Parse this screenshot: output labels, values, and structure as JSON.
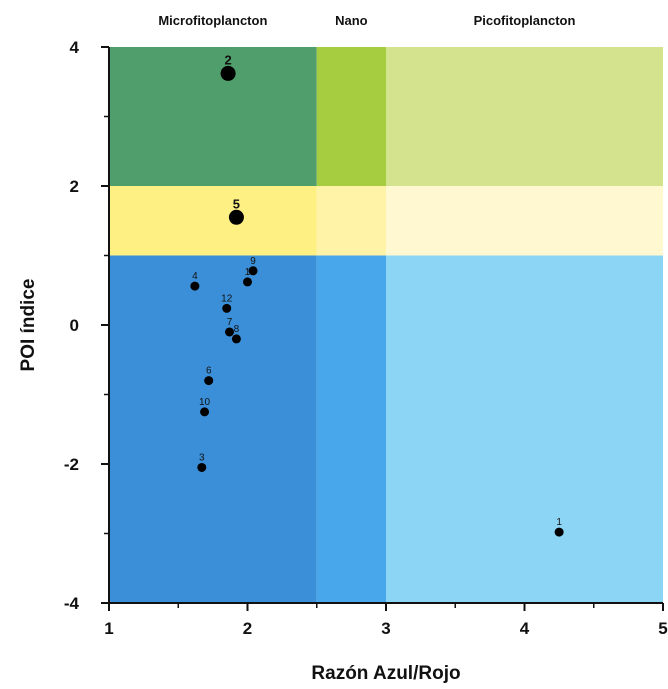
{
  "chart_data": {
    "type": "scatter",
    "xlabel": "Razón Azul/Rojo",
    "ylabel": "POI índice",
    "xlim": [
      1,
      5
    ],
    "ylim": [
      -4,
      4
    ],
    "xticks": [
      "1",
      "2",
      "3",
      "4",
      "5"
    ],
    "yticks": [
      "4",
      "2",
      "0",
      "-2",
      "-4"
    ],
    "region_labels": [
      {
        "text": "Microfitoplancton",
        "x_center": 1.75
      },
      {
        "text": "Nano",
        "x_center": 2.75
      },
      {
        "text": "Picofitoplancton",
        "x_center": 4.0
      }
    ],
    "regions": [
      {
        "x": [
          1,
          2.5
        ],
        "y": [
          2,
          4
        ],
        "color": "#4f9e6b"
      },
      {
        "x": [
          2.5,
          3
        ],
        "y": [
          2,
          4
        ],
        "color": "#a6cc3f"
      },
      {
        "x": [
          3,
          5
        ],
        "y": [
          2,
          4
        ],
        "color": "#d3e38e"
      },
      {
        "x": [
          1,
          2.5
        ],
        "y": [
          1,
          2
        ],
        "color": "#fff083"
      },
      {
        "x": [
          2.5,
          3
        ],
        "y": [
          1,
          2
        ],
        "color": "#fff3a8"
      },
      {
        "x": [
          3,
          5
        ],
        "y": [
          1,
          2
        ],
        "color": "#fff8d0"
      },
      {
        "x": [
          1,
          2.5
        ],
        "y": [
          -4,
          1
        ],
        "color": "#3a8fd8"
      },
      {
        "x": [
          2.5,
          3
        ],
        "y": [
          -4,
          1
        ],
        "color": "#48a6ea"
      },
      {
        "x": [
          3,
          5
        ],
        "y": [
          -4,
          1
        ],
        "color": "#8dd5f5"
      }
    ],
    "points": [
      {
        "label": "2",
        "x": 1.86,
        "y": 3.62,
        "size": "large"
      },
      {
        "label": "5",
        "x": 1.92,
        "y": 1.55,
        "size": "large"
      },
      {
        "label": "9",
        "x": 2.04,
        "y": 0.78,
        "size": "small"
      },
      {
        "label": "1",
        "x": 2.0,
        "y": 0.62,
        "size": "small"
      },
      {
        "label": "4",
        "x": 1.62,
        "y": 0.56,
        "size": "small"
      },
      {
        "label": "12",
        "x": 1.85,
        "y": 0.24,
        "size": "small"
      },
      {
        "label": "7",
        "x": 1.87,
        "y": -0.1,
        "size": "small"
      },
      {
        "label": "8",
        "x": 1.92,
        "y": -0.2,
        "size": "small"
      },
      {
        "label": "6",
        "x": 1.72,
        "y": -0.8,
        "size": "small"
      },
      {
        "label": "10",
        "x": 1.69,
        "y": -1.25,
        "size": "small"
      },
      {
        "label": "3",
        "x": 1.67,
        "y": -2.05,
        "size": "small"
      },
      {
        "label": "1",
        "x": 4.25,
        "y": -2.98,
        "size": "small"
      }
    ]
  }
}
